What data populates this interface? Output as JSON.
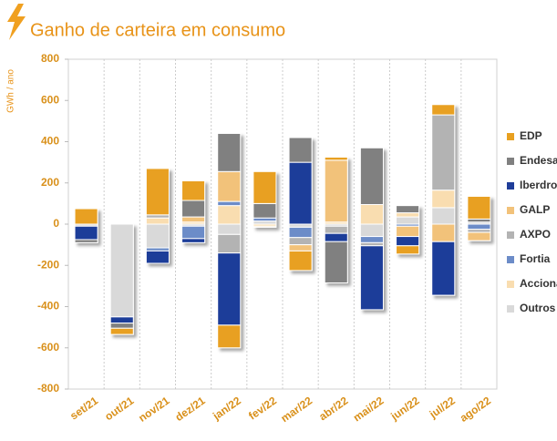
{
  "chart_data": {
    "type": "bar",
    "stacked": true,
    "title": "Ganho de carteira em consumo",
    "y_label": "GWh / ano",
    "categories": [
      "set/21",
      "out/21",
      "nov/21",
      "dez/21",
      "jan/22",
      "fev/22",
      "mar/22",
      "abr/22",
      "mai/22",
      "jun/22",
      "jul/22",
      "ago/22"
    ],
    "series": [
      {
        "name": "Outros",
        "color": "#d9d9d9",
        "values": [
          -10,
          -450,
          -115,
          -10,
          -50,
          15,
          -15,
          -10,
          -60,
          35,
          80,
          10
        ]
      },
      {
        "name": "Acciona",
        "color": "#f9ddb0",
        "values": [
          0,
          0,
          30,
          10,
          90,
          -10,
          0,
          10,
          95,
          20,
          85,
          0
        ]
      },
      {
        "name": "Fortia",
        "color": "#6c8cc8",
        "values": [
          0,
          0,
          -15,
          -60,
          20,
          15,
          -50,
          0,
          -30,
          -10,
          0,
          -25
        ]
      },
      {
        "name": "AXPO",
        "color": "#b3b3b3",
        "values": [
          0,
          0,
          15,
          0,
          -90,
          0,
          -35,
          -35,
          -15,
          0,
          365,
          -15
        ]
      },
      {
        "name": "GALP",
        "color": "#f2c27a",
        "values": [
          0,
          0,
          0,
          25,
          145,
          -5,
          -30,
          300,
          0,
          -50,
          -85,
          -40
        ]
      },
      {
        "name": "Iberdrola",
        "color": "#1f3d99",
        "values": [
          -65,
          -30,
          -60,
          -20,
          -350,
          0,
          300,
          -40,
          -310,
          -45,
          -260,
          0
        ]
      },
      {
        "name": "Endesa",
        "color": "#808080",
        "values": [
          -15,
          -25,
          0,
          80,
          185,
          70,
          120,
          -200,
          275,
          35,
          0,
          15
        ]
      },
      {
        "name": "EDP",
        "color": "#e8a020",
        "values": [
          75,
          -30,
          225,
          95,
          -110,
          155,
          -95,
          15,
          0,
          -40,
          50,
          110
        ]
      }
    ],
    "ylim": [
      -800,
      800
    ],
    "yticks": [
      -800,
      -600,
      -400,
      -200,
      0,
      200,
      400,
      600,
      800
    ],
    "grid": true,
    "legend": "right"
  }
}
